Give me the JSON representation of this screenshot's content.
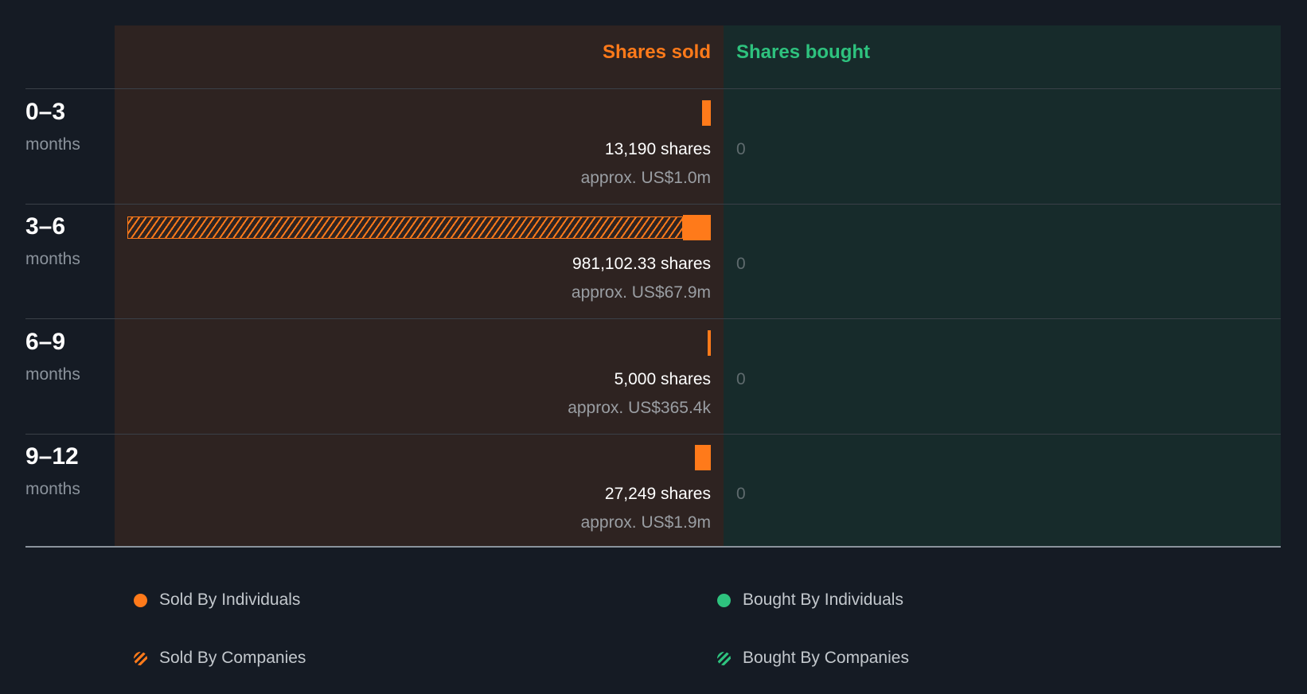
{
  "chart_data": {
    "type": "bar",
    "header": {
      "sold": "Shares sold",
      "bought": "Shares bought"
    },
    "rows": [
      {
        "period": "0–3",
        "unit": "months",
        "sold_individuals": 13190,
        "sold_companies": 0,
        "shares_label": "13,190 shares",
        "value_label": "approx. US$1.0m",
        "bought_label": "0"
      },
      {
        "period": "3–6",
        "unit": "months",
        "sold_individuals": 30000,
        "sold_companies": 951102.33,
        "shares_label": "981,102.33 shares",
        "value_label": "approx. US$67.9m",
        "bought_label": "0"
      },
      {
        "period": "6–9",
        "unit": "months",
        "sold_individuals": 5000,
        "sold_companies": 0,
        "shares_label": "5,000 shares",
        "value_label": "approx. US$365.4k",
        "bought_label": "0"
      },
      {
        "period": "9–12",
        "unit": "months",
        "sold_individuals": 27249,
        "sold_companies": 0,
        "shares_label": "27,249 shares",
        "value_label": "approx. US$1.9m",
        "bought_label": "0"
      }
    ],
    "legend": [
      {
        "label": "Sold By Individuals",
        "style": "solid",
        "color": "#ff7a1a"
      },
      {
        "label": "Bought By Individuals",
        "style": "solid",
        "color": "#2ec27e"
      },
      {
        "label": "Sold By Companies",
        "style": "hatched",
        "color": "#ff7a1a"
      },
      {
        "label": "Bought By Companies",
        "style": "hatched",
        "color": "#2ec27e"
      }
    ],
    "colors": {
      "sold": "#ff7a1a",
      "bought": "#2ec27e"
    }
  }
}
